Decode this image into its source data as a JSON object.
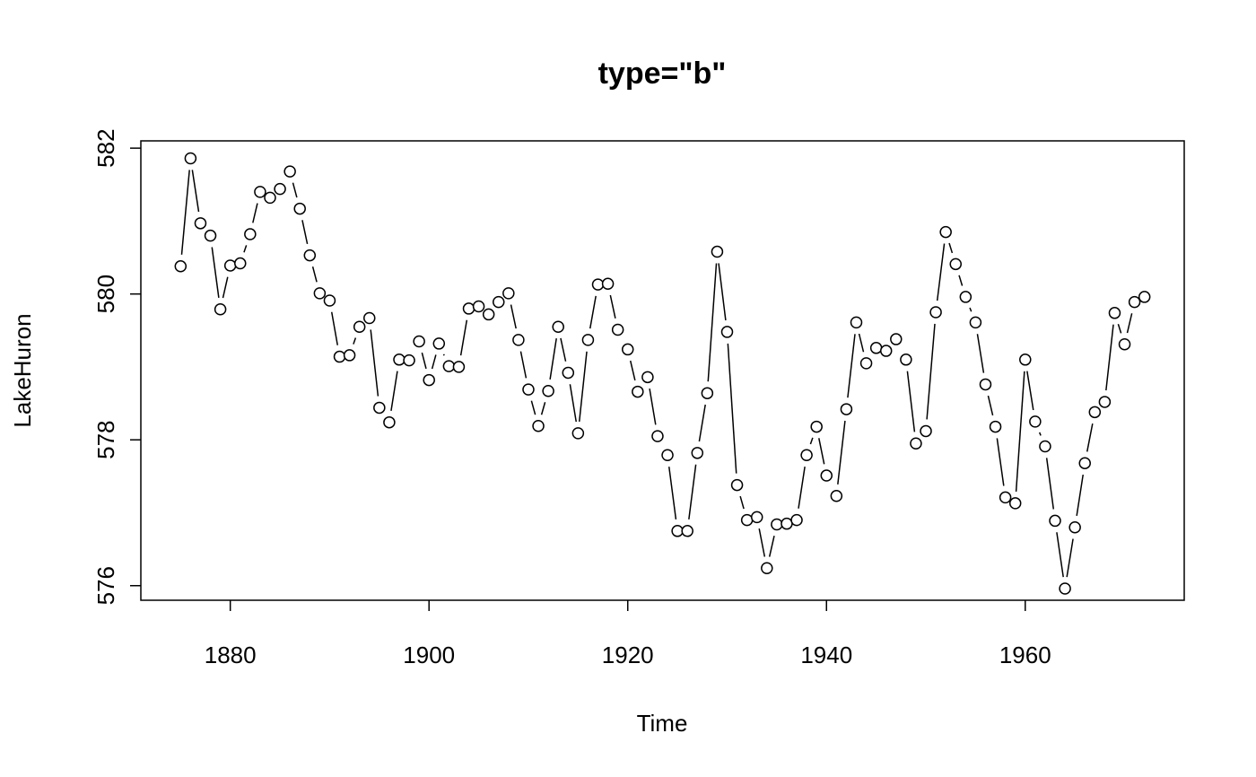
{
  "chart_data": {
    "type": "line",
    "style": "points-and-lines",
    "title": "type=\"b\"",
    "xlabel": "Time",
    "ylabel": "LakeHuron",
    "xlim": [
      1871,
      1976
    ],
    "ylim": [
      575.8,
      582.1
    ],
    "x_ticks": [
      1880,
      1900,
      1920,
      1940,
      1960
    ],
    "y_ticks": [
      576,
      578,
      580,
      582
    ],
    "grid": false,
    "legend": "none",
    "colors": {
      "line": "#000000",
      "point_fill": "#ffffff",
      "point_stroke": "#000000"
    },
    "x": [
      1875,
      1876,
      1877,
      1878,
      1879,
      1880,
      1881,
      1882,
      1883,
      1884,
      1885,
      1886,
      1887,
      1888,
      1889,
      1890,
      1891,
      1892,
      1893,
      1894,
      1895,
      1896,
      1897,
      1898,
      1899,
      1900,
      1901,
      1902,
      1903,
      1904,
      1905,
      1906,
      1907,
      1908,
      1909,
      1910,
      1911,
      1912,
      1913,
      1914,
      1915,
      1916,
      1917,
      1918,
      1919,
      1920,
      1921,
      1922,
      1923,
      1924,
      1925,
      1926,
      1927,
      1928,
      1929,
      1930,
      1931,
      1932,
      1933,
      1934,
      1935,
      1936,
      1937,
      1938,
      1939,
      1940,
      1941,
      1942,
      1943,
      1944,
      1945,
      1946,
      1947,
      1948,
      1949,
      1950,
      1951,
      1952,
      1953,
      1954,
      1955,
      1956,
      1957,
      1958,
      1959,
      1960,
      1961,
      1962,
      1963,
      1964,
      1965,
      1966,
      1967,
      1968,
      1969,
      1970,
      1971,
      1972
    ],
    "series": [
      {
        "values": [
          580.38,
          581.86,
          580.97,
          580.8,
          579.79,
          580.39,
          580.42,
          580.82,
          581.4,
          581.32,
          581.44,
          581.68,
          581.17,
          580.53,
          580.01,
          579.91,
          579.14,
          579.16,
          579.55,
          579.67,
          578.44,
          578.24,
          579.1,
          579.09,
          579.35,
          578.82,
          579.32,
          579.01,
          579.0,
          579.8,
          579.83,
          579.72,
          579.89,
          580.01,
          579.37,
          578.69,
          578.19,
          578.67,
          579.55,
          578.92,
          578.09,
          579.37,
          580.13,
          580.14,
          579.51,
          579.24,
          578.66,
          578.86,
          578.05,
          577.79,
          576.75,
          576.75,
          577.82,
          578.64,
          580.58,
          579.48,
          577.38,
          576.9,
          576.94,
          576.24,
          576.84,
          576.85,
          576.9,
          577.79,
          578.18,
          577.51,
          577.23,
          578.42,
          579.61,
          579.05,
          579.26,
          579.22,
          579.38,
          579.1,
          577.95,
          578.12,
          579.75,
          580.85,
          580.41,
          579.96,
          579.61,
          578.76,
          578.18,
          577.21,
          577.13,
          579.1,
          578.25,
          577.91,
          576.89,
          575.96,
          576.8,
          577.68,
          578.38,
          578.52,
          579.74,
          579.31,
          579.89,
          579.96
        ]
      }
    ]
  }
}
